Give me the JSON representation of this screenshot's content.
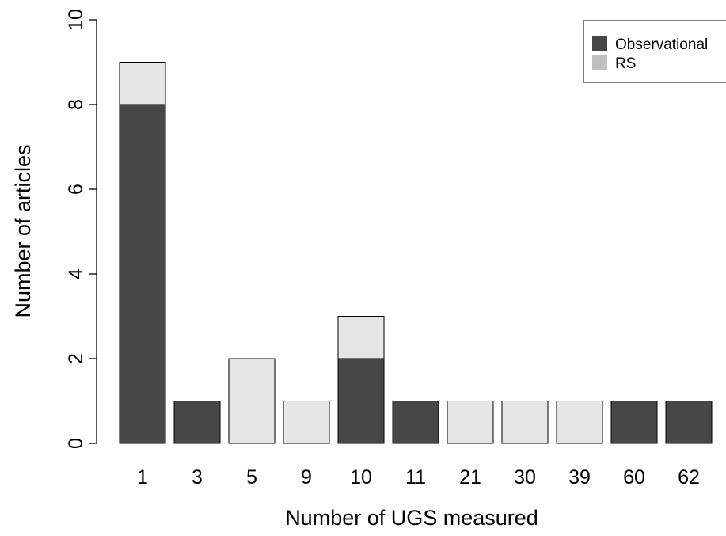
{
  "chart_data": {
    "type": "bar",
    "stacked": true,
    "title": "",
    "xlabel": "Number of UGS measured",
    "ylabel": "Number of articles",
    "categories": [
      "1",
      "3",
      "5",
      "9",
      "10",
      "11",
      "21",
      "30",
      "39",
      "60",
      "62"
    ],
    "series": [
      {
        "name": "Observational",
        "color": "#474747",
        "values": [
          8,
          1,
          0,
          0,
          2,
          1,
          0,
          0,
          0,
          1,
          1
        ]
      },
      {
        "name": "RS",
        "color": "#e6e6e6",
        "values": [
          1,
          0,
          2,
          1,
          1,
          0,
          1,
          1,
          1,
          0,
          0
        ]
      }
    ],
    "ylim": [
      0,
      10
    ],
    "yticks": [
      "0",
      "2",
      "4",
      "6",
      "8",
      "10"
    ],
    "grid": false,
    "legend": {
      "position": "top-right",
      "entries": [
        {
          "label": "Observational",
          "color": "#474747"
        },
        {
          "label": "RS",
          "color": "#c0c0c0"
        }
      ]
    }
  }
}
